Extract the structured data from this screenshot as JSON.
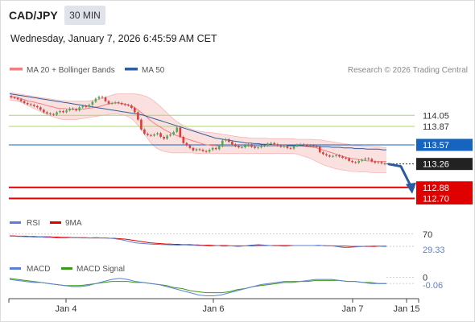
{
  "header": {
    "symbol": "CAD/JPY",
    "timeframe": "30 MIN",
    "datetime": "Wednesday, January 7, 2026 6:45:59 AM CET",
    "credit": "Research © 2026 Trading Central"
  },
  "colors": {
    "ma20": "#f08080",
    "bollinger_fill": "#fbe0e0",
    "ma50": "#2f5d9e",
    "bull": "#4caf50",
    "bear": "#e53935",
    "resistance": "#a5d86a",
    "pivot": "#1565c0",
    "support": "#e00000",
    "last_price_box": "#222222",
    "rsi": "#5b7fd6",
    "rsi_ma": "#e00000",
    "macd": "#5b7fd6",
    "macd_signal": "#3a9a1a",
    "forecast_arrow": "#2a5aa0"
  },
  "chart_data": [
    {
      "type": "candlestick",
      "title": "CAD/JPY",
      "legend": [
        "MA 20 + Bollinger Bands",
        "MA 50"
      ],
      "x_ticks": [
        "Jan 4",
        "Jan 6",
        "Jan 7",
        "Jan 15"
      ],
      "ylim": [
        112.55,
        114.55
      ],
      "levels": [
        {
          "value": 114.05,
          "label": "114.05",
          "kind": "resistance"
        },
        {
          "value": 113.87,
          "label": "113.87",
          "kind": "resistance"
        },
        {
          "value": 113.57,
          "label": "113.57",
          "kind": "pivot"
        },
        {
          "value": 113.26,
          "label": "113.26",
          "kind": "last"
        },
        {
          "value": 112.88,
          "label": "112.88",
          "kind": "support"
        },
        {
          "value": 112.7,
          "label": "112.70",
          "kind": "support"
        }
      ],
      "close": [
        114.34,
        114.33,
        114.31,
        114.28,
        114.25,
        114.23,
        114.22,
        114.2,
        114.18,
        114.14,
        114.1,
        114.08,
        114.07,
        114.06,
        114.1,
        114.12,
        114.1,
        114.13,
        114.16,
        114.15,
        114.13,
        114.18,
        114.2,
        114.19,
        114.22,
        114.27,
        114.32,
        114.35,
        114.34,
        114.28,
        114.24,
        114.25,
        114.26,
        114.25,
        114.23,
        114.22,
        114.21,
        114.17,
        114.1,
        113.98,
        113.82,
        113.75,
        113.73,
        113.72,
        113.74,
        113.76,
        113.7,
        113.67,
        113.72,
        113.74,
        113.78,
        113.85,
        113.7,
        113.6,
        113.56,
        113.52,
        113.48,
        113.5,
        113.49,
        113.47,
        113.46,
        113.49,
        113.52,
        113.5,
        113.55,
        113.64,
        113.66,
        113.62,
        113.58,
        113.55,
        113.53,
        113.53,
        113.56,
        113.57,
        113.54,
        113.52,
        113.53,
        113.55,
        113.56,
        113.59,
        113.6,
        113.58,
        113.56,
        113.54,
        113.55,
        113.52,
        113.51,
        113.55,
        113.57,
        113.58,
        113.57,
        113.56,
        113.56,
        113.55,
        113.54,
        113.45,
        113.42,
        113.4,
        113.38,
        113.39,
        113.4,
        113.38,
        113.36,
        113.35,
        113.31,
        113.29,
        113.28,
        113.31,
        113.33,
        113.35,
        113.34,
        113.3,
        113.28,
        113.29,
        113.27,
        113.26
      ],
      "open": [
        114.36,
        114.34,
        114.33,
        114.31,
        114.28,
        114.25,
        114.23,
        114.22,
        114.2,
        114.18,
        114.14,
        114.1,
        114.08,
        114.07,
        114.06,
        114.1,
        114.12,
        114.1,
        114.13,
        114.16,
        114.15,
        114.13,
        114.18,
        114.2,
        114.19,
        114.22,
        114.27,
        114.32,
        114.35,
        114.34,
        114.28,
        114.24,
        114.25,
        114.26,
        114.25,
        114.23,
        114.22,
        114.21,
        114.17,
        114.1,
        113.98,
        113.82,
        113.75,
        113.73,
        113.72,
        113.74,
        113.76,
        113.7,
        113.67,
        113.72,
        113.74,
        113.78,
        113.85,
        113.7,
        113.6,
        113.56,
        113.52,
        113.48,
        113.5,
        113.49,
        113.47,
        113.46,
        113.49,
        113.52,
        113.5,
        113.55,
        113.64,
        113.66,
        113.62,
        113.58,
        113.55,
        113.53,
        113.53,
        113.56,
        113.57,
        113.54,
        113.52,
        113.53,
        113.55,
        113.56,
        113.59,
        113.6,
        113.58,
        113.56,
        113.54,
        113.55,
        113.52,
        113.51,
        113.55,
        113.57,
        113.58,
        113.57,
        113.56,
        113.56,
        113.55,
        113.54,
        113.45,
        113.42,
        113.4,
        113.38,
        113.39,
        113.4,
        113.38,
        113.36,
        113.35,
        113.31,
        113.29,
        113.28,
        113.31,
        113.33,
        113.35,
        113.34,
        113.3,
        113.28,
        113.29,
        113.27
      ],
      "ma20": [
        114.36,
        114.35,
        114.34,
        114.32,
        114.3,
        114.28,
        114.27,
        114.25,
        114.24,
        114.22,
        114.2,
        114.19,
        114.17,
        114.16,
        114.16,
        114.15,
        114.15,
        114.15,
        114.15,
        114.15,
        114.16,
        114.17,
        114.18,
        114.19,
        114.21,
        114.23,
        114.24,
        114.25,
        114.25,
        114.24,
        114.23,
        114.21,
        114.18,
        114.14,
        114.09,
        114.04,
        113.98,
        113.93,
        113.89,
        113.85,
        113.81,
        113.78,
        113.75,
        113.72,
        113.7,
        113.68,
        113.66,
        113.64,
        113.62,
        113.6,
        113.58,
        113.57,
        113.56,
        113.56,
        113.55,
        113.55,
        113.55,
        113.55,
        113.55,
        113.55,
        113.55,
        113.55,
        113.55,
        113.55,
        113.55,
        113.55,
        113.55,
        113.55,
        113.55,
        113.55,
        113.55,
        113.55,
        113.55,
        113.55,
        113.55,
        113.55,
        113.55,
        113.54,
        113.53,
        113.52,
        113.5,
        113.48,
        113.46,
        113.44,
        113.42,
        113.4,
        113.38,
        113.36,
        113.35,
        113.34,
        113.33,
        113.32,
        113.31,
        113.31,
        113.3,
        113.3,
        113.3,
        113.3
      ],
      "bb_upper": [
        114.42,
        114.41,
        114.4,
        114.39,
        114.38,
        114.37,
        114.36,
        114.35,
        114.34,
        114.33,
        114.32,
        114.31,
        114.3,
        114.29,
        114.29,
        114.28,
        114.28,
        114.28,
        114.28,
        114.28,
        114.28,
        114.29,
        114.3,
        114.31,
        114.33,
        114.35,
        114.37,
        114.39,
        114.4,
        114.4,
        114.4,
        114.4,
        114.4,
        114.39,
        114.38,
        114.36,
        114.33,
        114.29,
        114.24,
        114.18,
        114.12,
        114.06,
        114.0,
        113.95,
        113.91,
        113.87,
        113.84,
        113.82,
        113.8,
        113.79,
        113.78,
        113.77,
        113.77,
        113.76,
        113.75,
        113.74,
        113.73,
        113.72,
        113.71,
        113.7,
        113.69,
        113.69,
        113.68,
        113.68,
        113.68,
        113.68,
        113.68,
        113.67,
        113.67,
        113.67,
        113.67,
        113.67,
        113.67,
        113.67,
        113.66,
        113.66,
        113.66,
        113.66,
        113.66,
        113.65,
        113.65,
        113.64,
        113.63,
        113.62,
        113.61,
        113.6,
        113.59,
        113.58,
        113.57,
        113.56,
        113.56,
        113.55,
        113.55,
        113.55,
        113.54,
        113.54,
        113.53,
        113.52
      ],
      "bb_lower": [
        114.3,
        114.29,
        114.28,
        114.26,
        114.23,
        114.2,
        114.17,
        114.14,
        114.11,
        114.08,
        114.05,
        114.03,
        114.01,
        113.99,
        113.98,
        113.98,
        113.98,
        113.98,
        113.99,
        114.0,
        114.01,
        114.02,
        114.03,
        114.04,
        114.05,
        114.06,
        114.07,
        114.07,
        114.07,
        114.06,
        114.04,
        114.01,
        113.96,
        113.89,
        113.81,
        113.72,
        113.63,
        113.56,
        113.51,
        113.48,
        113.46,
        113.45,
        113.44,
        113.44,
        113.44,
        113.44,
        113.44,
        113.44,
        113.43,
        113.43,
        113.43,
        113.43,
        113.43,
        113.43,
        113.43,
        113.43,
        113.43,
        113.43,
        113.43,
        113.43,
        113.43,
        113.43,
        113.43,
        113.43,
        113.43,
        113.43,
        113.43,
        113.43,
        113.43,
        113.43,
        113.43,
        113.43,
        113.43,
        113.43,
        113.42,
        113.4,
        113.38,
        113.36,
        113.33,
        113.3,
        113.27,
        113.24,
        113.22,
        113.2,
        113.18,
        113.17,
        113.16,
        113.15,
        113.14,
        113.14,
        113.13,
        113.13,
        113.13,
        113.12,
        113.12,
        113.12,
        113.12,
        113.12
      ],
      "ma50": [
        114.4,
        114.39,
        114.38,
        114.37,
        114.36,
        114.35,
        114.34,
        114.33,
        114.32,
        114.31,
        114.3,
        114.29,
        114.28,
        114.27,
        114.26,
        114.25,
        114.24,
        114.23,
        114.22,
        114.21,
        114.2,
        114.19,
        114.18,
        114.17,
        114.16,
        114.15,
        114.14,
        114.13,
        114.12,
        114.11,
        114.1,
        114.09,
        114.08,
        114.07,
        114.06,
        114.04,
        114.02,
        114.0,
        113.98,
        113.96,
        113.94,
        113.92,
        113.9,
        113.88,
        113.86,
        113.84,
        113.82,
        113.8,
        113.78,
        113.76,
        113.74,
        113.72,
        113.7,
        113.68,
        113.67,
        113.66,
        113.65,
        113.64,
        113.63,
        113.62,
        113.61,
        113.6,
        113.6,
        113.59,
        113.59,
        113.58,
        113.58,
        113.58,
        113.57,
        113.57,
        113.57,
        113.57,
        113.56,
        113.56,
        113.56,
        113.56,
        113.55,
        113.55,
        113.55,
        113.55,
        113.54,
        113.54,
        113.54,
        113.53,
        113.53,
        113.53,
        113.52,
        113.52,
        113.52,
        113.51,
        113.51,
        113.51,
        113.5,
        113.5,
        113.5,
        113.5,
        113.49,
        113.49
      ],
      "forecast_target": 112.88
    },
    {
      "type": "line",
      "title": "RSI",
      "series": [
        {
          "name": "RSI"
        },
        {
          "name": "9MA"
        }
      ],
      "ylim": [
        0,
        100
      ],
      "levels": [
        {
          "value": 70,
          "label": "70"
        }
      ],
      "last_value": 29.33,
      "last_label": "29.33",
      "rsi": [
        63,
        63,
        62,
        62,
        61,
        61,
        60,
        60,
        60,
        59,
        59,
        58,
        57,
        57,
        57,
        58,
        58,
        58,
        57,
        57,
        57,
        58,
        58,
        57,
        57,
        56,
        55,
        53,
        51,
        48,
        45,
        42,
        40,
        39,
        38,
        37,
        36,
        36,
        35,
        35,
        34,
        34,
        33,
        34,
        34,
        33,
        33,
        32,
        32,
        31,
        30,
        31,
        32,
        30,
        30,
        31,
        30,
        29,
        30,
        31,
        33,
        34,
        35,
        34,
        33,
        32,
        31,
        31,
        30,
        30,
        31,
        32,
        32,
        32,
        32,
        32,
        32,
        33,
        32,
        31,
        31,
        30,
        28,
        26,
        25,
        26,
        27,
        28,
        29,
        30,
        30,
        31,
        30,
        29,
        29
      ],
      "rsi_ma": [
        64,
        64,
        63,
        63,
        63,
        62,
        62,
        61,
        61,
        61,
        61,
        60,
        60,
        59,
        59,
        59,
        58,
        58,
        58,
        58,
        57,
        57,
        57,
        57,
        57,
        56,
        56,
        55,
        54,
        53,
        51,
        49,
        47,
        45,
        43,
        41,
        40,
        39,
        38,
        37,
        37,
        36,
        36,
        35,
        35,
        35,
        34,
        34,
        33,
        33,
        33,
        32,
        32,
        32,
        32,
        31,
        31,
        31,
        31,
        31,
        31,
        31,
        32,
        32,
        32,
        32,
        32,
        32,
        32,
        32,
        32,
        32,
        32,
        32,
        32,
        32,
        32,
        32,
        32,
        31,
        31,
        31,
        30,
        30,
        30,
        29,
        29,
        29,
        29,
        29,
        29,
        29,
        30,
        30,
        30
      ]
    },
    {
      "type": "line",
      "title": "MACD",
      "series": [
        {
          "name": "MACD"
        },
        {
          "name": "MACD Signal"
        }
      ],
      "ylim": [
        -0.2,
        0.05
      ],
      "levels": [
        {
          "value": 0,
          "label": "0"
        }
      ],
      "last_value": -0.06,
      "last_label": "-0.06",
      "macd": [
        -0.02,
        -0.03,
        -0.04,
        -0.05,
        -0.05,
        -0.06,
        -0.07,
        -0.08,
        -0.09,
        -0.09,
        -0.08,
        -0.06,
        -0.04,
        -0.02,
        -0.01,
        -0.02,
        -0.04,
        -0.05,
        -0.06,
        -0.07,
        -0.09,
        -0.11,
        -0.13,
        -0.15,
        -0.17,
        -0.18,
        -0.18,
        -0.17,
        -0.15,
        -0.13,
        -0.11,
        -0.09,
        -0.07,
        -0.06,
        -0.05,
        -0.04,
        -0.04,
        -0.04,
        -0.03,
        -0.02,
        -0.02,
        -0.02,
        -0.03,
        -0.04,
        -0.04,
        -0.05,
        -0.06,
        -0.06,
        -0.06
      ],
      "macd_signal": [
        -0.01,
        -0.02,
        -0.03,
        -0.04,
        -0.05,
        -0.06,
        -0.07,
        -0.08,
        -0.08,
        -0.08,
        -0.07,
        -0.06,
        -0.05,
        -0.04,
        -0.04,
        -0.04,
        -0.05,
        -0.05,
        -0.06,
        -0.07,
        -0.08,
        -0.1,
        -0.11,
        -0.13,
        -0.14,
        -0.15,
        -0.15,
        -0.15,
        -0.14,
        -0.12,
        -0.11,
        -0.09,
        -0.08,
        -0.07,
        -0.06,
        -0.05,
        -0.05,
        -0.04,
        -0.04,
        -0.03,
        -0.03,
        -0.03,
        -0.03,
        -0.04,
        -0.04,
        -0.05,
        -0.05,
        -0.06,
        -0.06
      ]
    }
  ]
}
